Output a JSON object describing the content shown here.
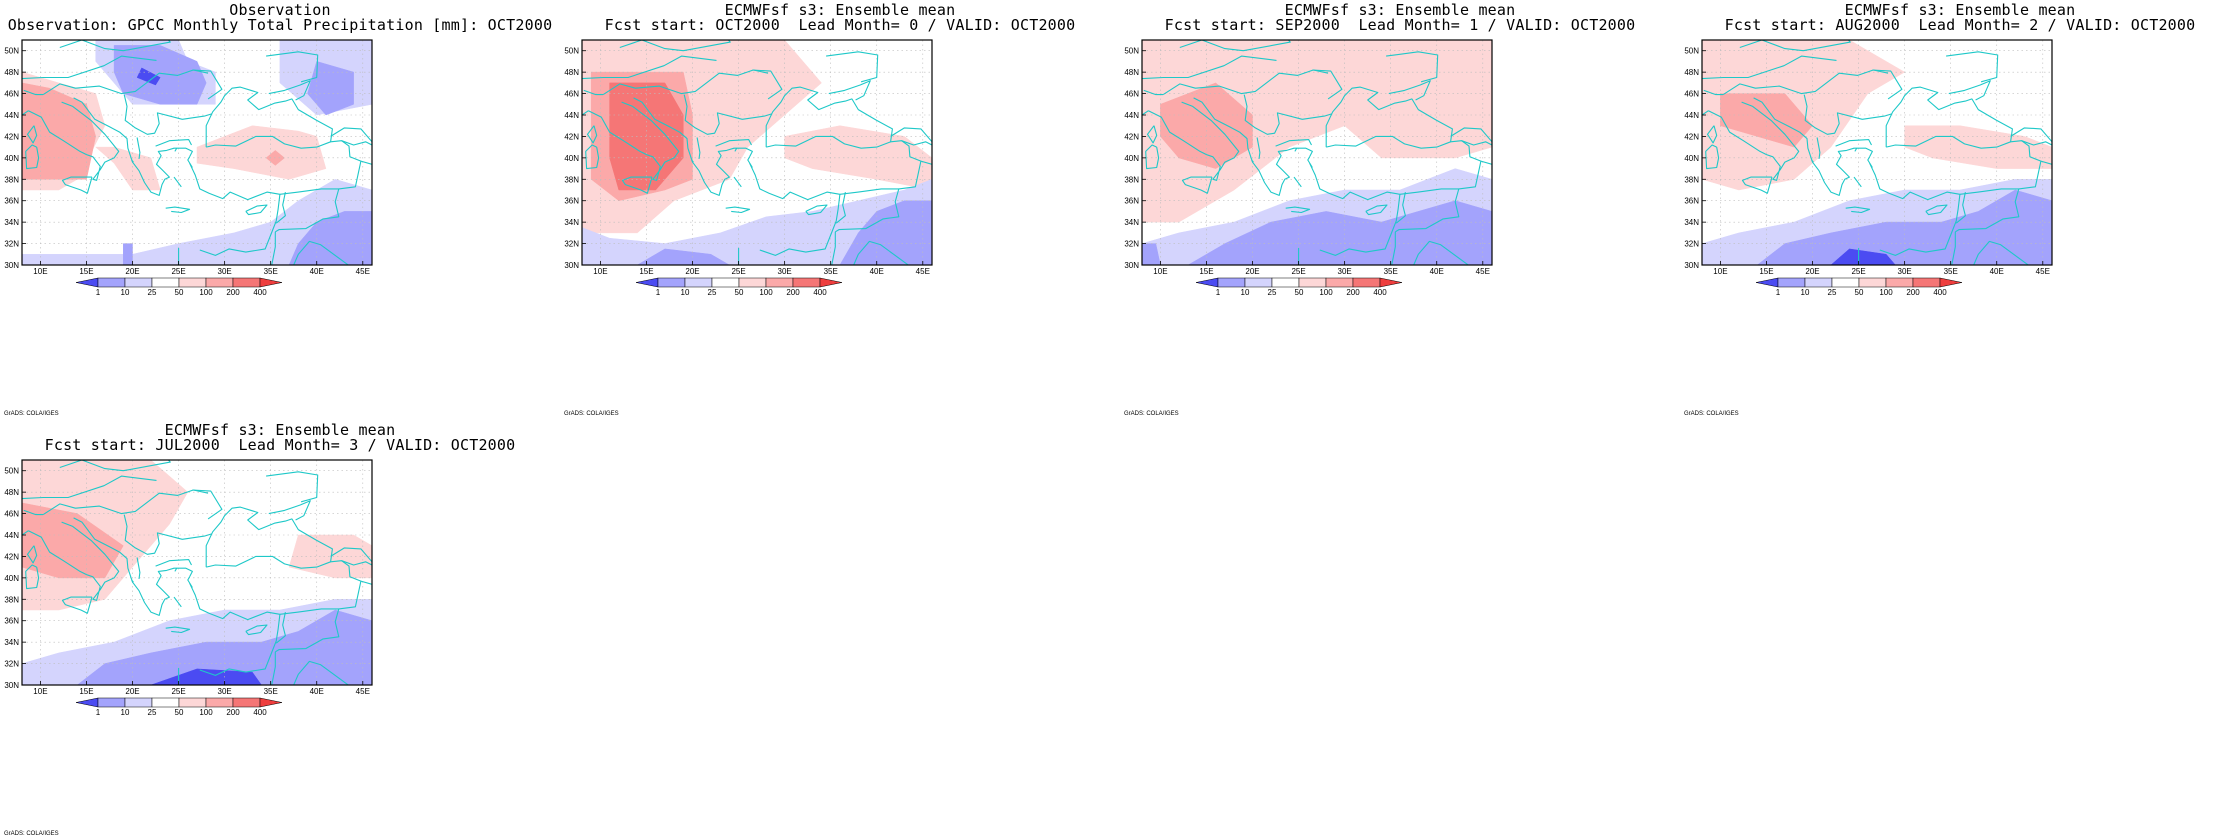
{
  "colorbar": {
    "labels": [
      "1",
      "10",
      "25",
      "50",
      "100",
      "200",
      "400"
    ],
    "colors": [
      "#4b4bf2",
      "#a3a3fc",
      "#d4d4fd",
      "#ffffff",
      "#fdd7d7",
      "#fba9a9",
      "#f57676",
      "#ee3d3d"
    ]
  },
  "colors": {
    "coast": "#1ec8c8",
    "frame": "#000000",
    "grid": "#bdbdbd"
  },
  "axes": {
    "lat_labels": [
      "30N",
      "32N",
      "34N",
      "36N",
      "38N",
      "40N",
      "42N",
      "44N",
      "46N",
      "48N",
      "50N"
    ],
    "lon_labels": [
      "10E",
      "15E",
      "20E",
      "25E",
      "30E",
      "35E",
      "40E",
      "45E"
    ]
  },
  "credit": "GrADS: COLA/IGES",
  "panels": [
    {
      "id": "obs",
      "title1": "Observation",
      "title2": "Observation: GPCC Monthly Total Precipitation [mm]: OCT2000"
    },
    {
      "id": "lead0",
      "title1": "ECMWFsf s3: Ensemble mean",
      "title2": "Fcst start: OCT2000  Lead Month= 0 / VALID: OCT2000"
    },
    {
      "id": "lead1",
      "title1": "ECMWFsf s3: Ensemble mean",
      "title2": "Fcst start: SEP2000  Lead Month= 1 / VALID: OCT2000"
    },
    {
      "id": "lead2",
      "title1": "ECMWFsf s3: Ensemble mean",
      "title2": "Fcst start: AUG2000  Lead Month= 2 / VALID: OCT2000"
    },
    {
      "id": "lead3",
      "title1": "ECMWFsf s3: Ensemble mean",
      "title2": "Fcst start: JUL2000  Lead Month= 3 / VALID: OCT2000"
    }
  ]
}
